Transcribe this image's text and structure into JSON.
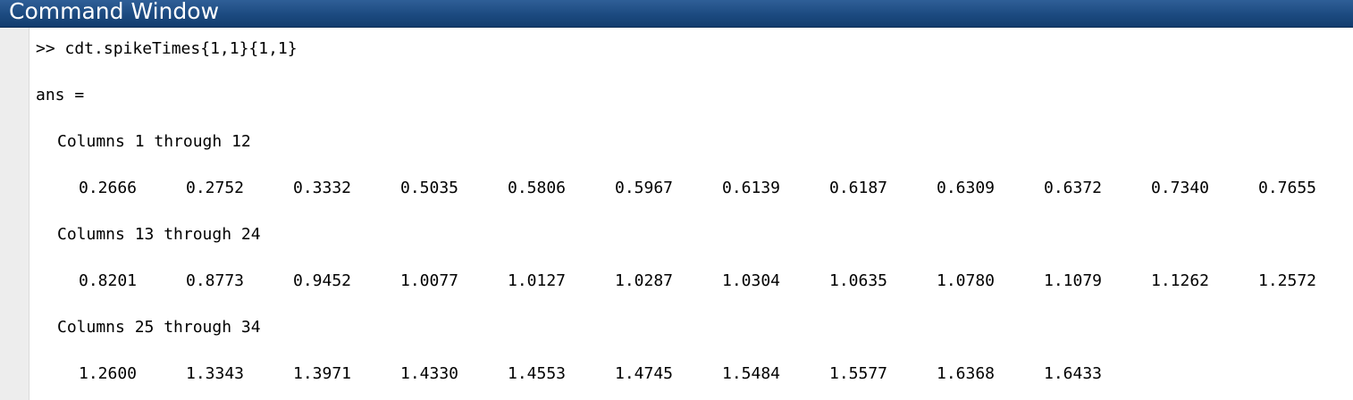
{
  "window": {
    "title": "Command Window"
  },
  "console": {
    "prompt_line": ">> cdt.spikeTimes{1,1}{1,1}",
    "ans_label": "ans =",
    "blocks": [
      {
        "header": "Columns 1 through 12",
        "values": [
          "0.2666",
          "0.2752",
          "0.3332",
          "0.5035",
          "0.5806",
          "0.5967",
          "0.6139",
          "0.6187",
          "0.6309",
          "0.6372",
          "0.7340",
          "0.7655"
        ]
      },
      {
        "header": "Columns 13 through 24",
        "values": [
          "0.8201",
          "0.8773",
          "0.9452",
          "1.0077",
          "1.0127",
          "1.0287",
          "1.0304",
          "1.0635",
          "1.0780",
          "1.1079",
          "1.1262",
          "1.2572"
        ]
      },
      {
        "header": "Columns 25 through 34",
        "values": [
          "1.2600",
          "1.3343",
          "1.3971",
          "1.4330",
          "1.4553",
          "1.4745",
          "1.5484",
          "1.5577",
          "1.6368",
          "1.6433"
        ]
      }
    ]
  }
}
